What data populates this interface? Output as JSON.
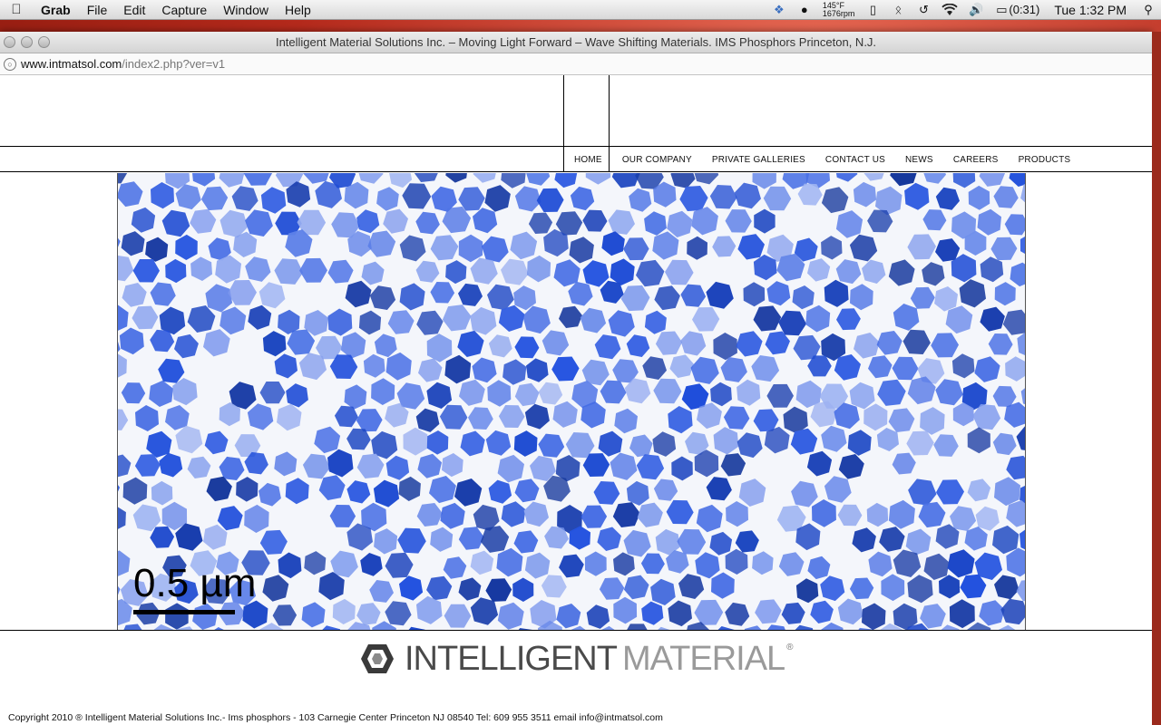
{
  "menubar": {
    "app_name": "Grab",
    "items": [
      "File",
      "Edit",
      "Capture",
      "Window",
      "Help"
    ],
    "temp_line1": "145°F",
    "temp_line2": "1676rpm",
    "battery": "(0:31)",
    "clock": "Tue 1:32 PM"
  },
  "browser": {
    "title": "Intelligent Material Solutions Inc. – Moving Light Forward – Wave Shifting Materials. IMS Phosphors Princeton, N.J.",
    "url_domain": "www.intmatsol.com",
    "url_path": "/index2.php?ver=v1"
  },
  "nav": {
    "items": [
      "HOME",
      "OUR COMPANY",
      "PRIVATE GALLERIES",
      "CONTACT US",
      "NEWS",
      "CAREERS",
      "PRODUCTS"
    ]
  },
  "hero": {
    "scale_label": "0.5 µm",
    "accent": "#2a4fd0"
  },
  "logo": {
    "word1": "INTELLIGENT",
    "word2": "MATERIAL",
    "reg": "®"
  },
  "footer": {
    "text": "Copyright 2010  ® Intelligent Material Solutions Inc.- Ims phosphors - 103 Carnegie Center Princeton NJ 08540 Tel: 609 955 3511 email info@intmatsol.com"
  }
}
